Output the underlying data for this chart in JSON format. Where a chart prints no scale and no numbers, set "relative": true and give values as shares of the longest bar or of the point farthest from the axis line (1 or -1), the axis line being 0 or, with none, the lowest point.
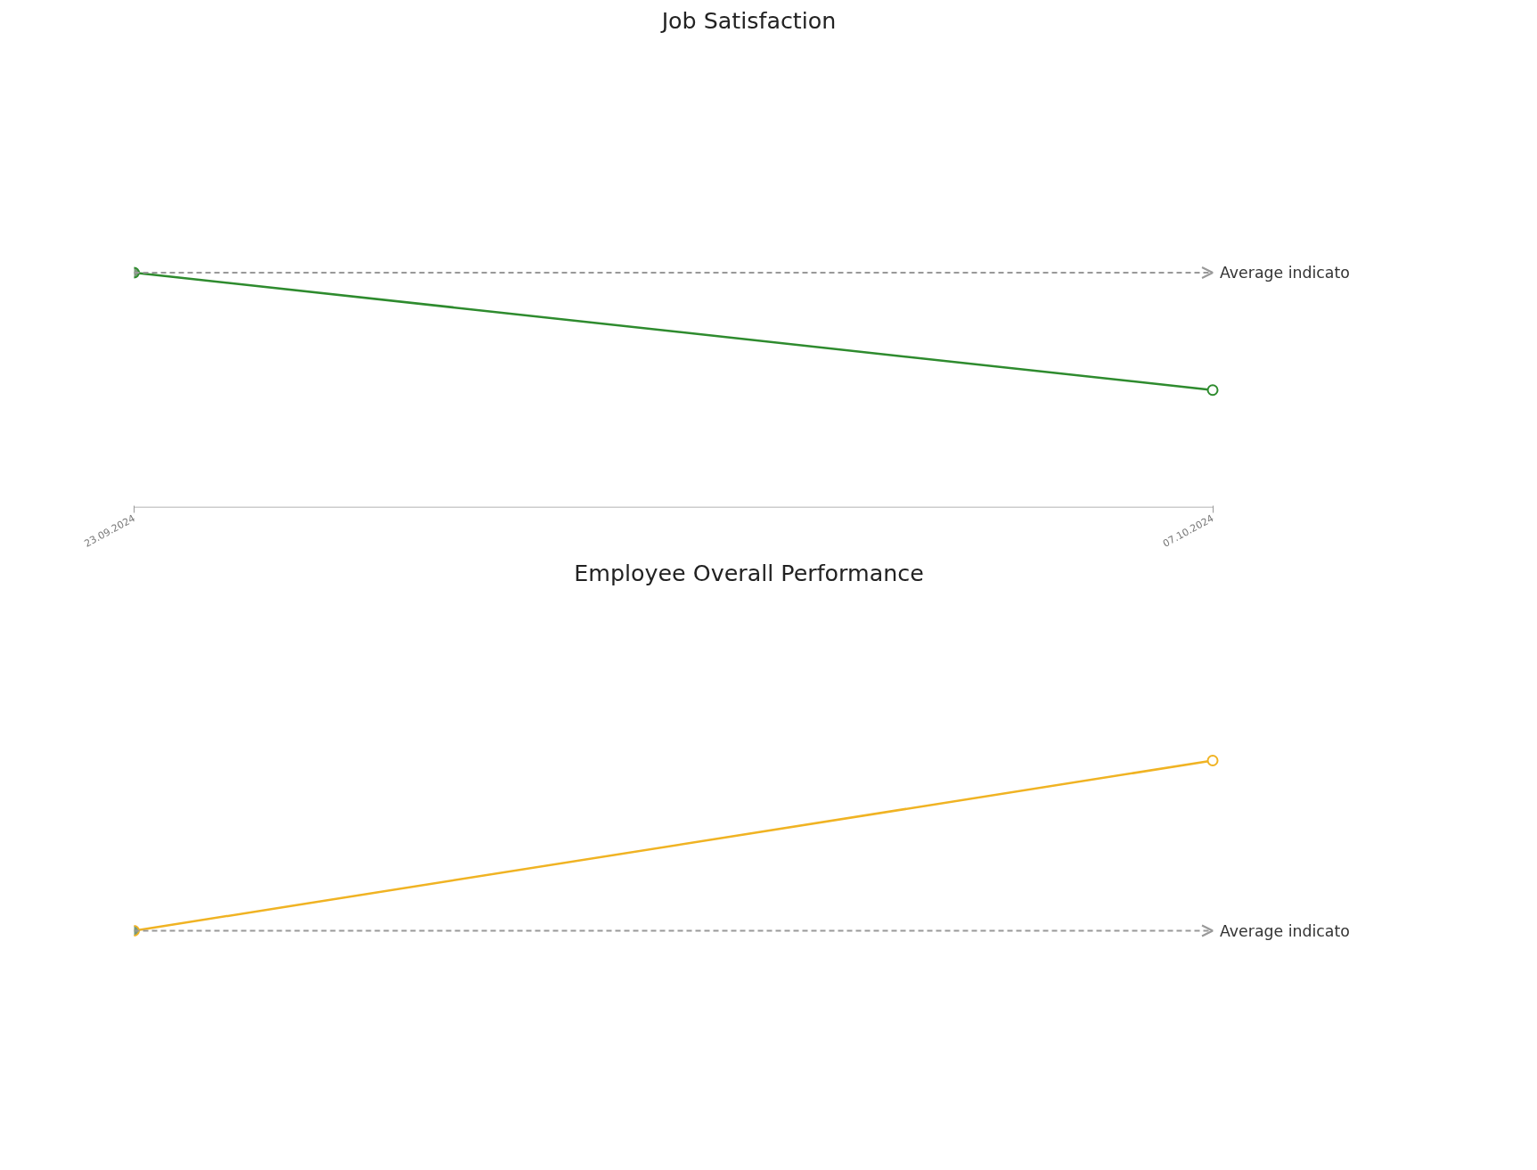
{
  "chart_data": [
    {
      "type": "line",
      "title": "Job Satisfaction",
      "relative": true,
      "x": [
        "2024-09-23",
        "2024-10-07"
      ],
      "xlim": [
        "2024-09-23",
        "2024-10-07"
      ],
      "xticks": [
        {
          "value": "2024-09-23",
          "label": "23.09.2024"
        },
        {
          "value": "2024-10-07",
          "label": "07.10.2024"
        }
      ],
      "tick_labels": "x",
      "marker": "circle",
      "series": [
        {
          "color": "#2e8b2e",
          "values": [
            1,
            0.5
          ]
        }
      ],
      "ref_lines": [
        {
          "axis": "y",
          "value": 1,
          "label": "Average indicato",
          "color": "#999999",
          "line_style": "dashed"
        }
      ]
    },
    {
      "type": "line",
      "title": "Employee Overall Performance",
      "relative": true,
      "categories": [
        null,
        null
      ],
      "tick_labels": false,
      "marker": "circle",
      "series": [
        {
          "color": "#f0b323",
          "values": [
            0,
            1
          ]
        }
      ],
      "ref_lines": [
        {
          "axis": "y",
          "value": 0,
          "label": "Average indicato",
          "color": "#999999",
          "line_style": "dashed"
        }
      ]
    }
  ]
}
